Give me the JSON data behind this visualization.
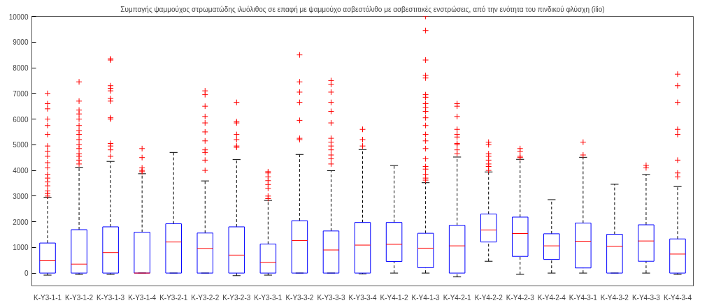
{
  "chart_data": {
    "type": "box",
    "title": "Συμπαγής ψαμμούχος στρωματώδης ιλυόλιθος σε επαφή με ψαμμούχο ασβεστόλιθο με ασβεστιτικές ενστρώσεις, από την ενότητα του πινδικού φλύσχη (ilio)",
    "categories": [
      "K-Y3-1-1",
      "K-Y3-1-2",
      "K-Y3-1-3",
      "K-Y3-1-4",
      "K-Y3-2-1",
      "K-Y3-2-2",
      "K-Y3-2-3",
      "K-Y3-3-1",
      "K-Y3-3-2",
      "K-Y3-3-3",
      "K-Y3-3-4",
      "K-Y4-1-2",
      "K-Y4-1-3",
      "K-Y4-2-1",
      "K-Y4-2-2",
      "K-Y4-2-3",
      "K-Y4-2-4",
      "K-Y4-3-1",
      "K-Y4-3-2",
      "K-Y4-3-3",
      "K-Y4-3-4"
    ],
    "boxes": [
      {
        "low": -80,
        "q1": 0,
        "median": 480,
        "q3": 1170,
        "high": 2950,
        "outliers": [
          7000,
          6600,
          6400,
          6000,
          5750,
          5400,
          4950,
          4750,
          4550,
          4300,
          4100,
          3850,
          3700,
          3550,
          3400,
          3200,
          3100,
          3000
        ]
      },
      {
        "low": -50,
        "q1": 0,
        "median": 350,
        "q3": 1690,
        "high": 4120,
        "outliers": [
          7450,
          6700,
          6350,
          6200,
          6000,
          5750,
          5550,
          5400,
          5200,
          5000,
          4850,
          4650,
          4550,
          4400,
          4250
        ]
      },
      {
        "low": -50,
        "q1": 0,
        "median": 800,
        "q3": 1800,
        "high": 4350,
        "outliers": [
          8350,
          8300,
          7300,
          7200,
          7100,
          6800,
          6700,
          6050,
          6000,
          5050,
          4950,
          4800,
          4550
        ]
      },
      {
        "low": 0,
        "q1": 0,
        "median": 0,
        "q3": 1590,
        "high": 3870,
        "outliers": [
          4850,
          4500,
          4100,
          4000,
          3950
        ]
      },
      {
        "low": 0,
        "q1": 0,
        "median": 1210,
        "q3": 1920,
        "high": 4700
      },
      {
        "low": 0,
        "q1": 0,
        "median": 960,
        "q3": 1560,
        "high": 3590,
        "outliers": [
          7100,
          6950,
          6500,
          6100,
          5850,
          5500,
          5150,
          4800,
          4700,
          4400,
          4000
        ]
      },
      {
        "low": -100,
        "q1": 0,
        "median": 700,
        "q3": 1800,
        "high": 4420,
        "outliers": [
          6650,
          5900,
          5850,
          5400,
          5200,
          4950,
          4900
        ]
      },
      {
        "low": -80,
        "q1": 0,
        "median": 420,
        "q3": 1130,
        "high": 2830,
        "outliers": [
          3950,
          3900,
          3750,
          3600,
          3450,
          3300,
          3000,
          2900
        ]
      },
      {
        "low": 0,
        "q1": 0,
        "median": 1270,
        "q3": 2040,
        "high": 4620,
        "outliers": [
          8500,
          7450,
          7050,
          6650,
          5950,
          5250,
          5200
        ]
      },
      {
        "low": 0,
        "q1": 0,
        "median": 900,
        "q3": 1640,
        "high": 3990,
        "outliers": [
          7500,
          7350,
          7050,
          6650,
          6300,
          5850,
          5250,
          5100,
          4950,
          4800,
          4600,
          4450,
          4250
        ]
      },
      {
        "low": -30,
        "q1": 0,
        "median": 1090,
        "q3": 1970,
        "high": 4810,
        "outliers": [
          5600,
          5200,
          4950
        ]
      },
      {
        "low": 0,
        "q1": 450,
        "median": 1120,
        "q3": 1970,
        "high": 4190
      },
      {
        "low": 0,
        "q1": 210,
        "median": 970,
        "q3": 1550,
        "high": 3520,
        "outliers": [
          10000,
          9450,
          8300,
          7700,
          7600,
          6950,
          6850,
          6600,
          6450,
          6300,
          6050,
          5750,
          5400,
          5150,
          4850,
          4450,
          4150,
          4050,
          3850,
          3700,
          3620
        ]
      },
      {
        "low": -150,
        "q1": 0,
        "median": 1060,
        "q3": 1860,
        "high": 4520,
        "outliers": [
          6600,
          6500,
          6100,
          5600,
          5400,
          5300,
          5050,
          5000,
          4800,
          4650
        ]
      },
      {
        "low": 460,
        "q1": 1210,
        "median": 1680,
        "q3": 2300,
        "high": 3940,
        "outliers": [
          5100,
          5000,
          4650,
          4550,
          4400,
          4250,
          4150,
          4000
        ]
      },
      {
        "low": -50,
        "q1": 650,
        "median": 1540,
        "q3": 2180,
        "high": 4430,
        "outliers": [
          4850,
          4750,
          4550,
          4500
        ]
      },
      {
        "low": 0,
        "q1": 530,
        "median": 1060,
        "q3": 1530,
        "high": 2860
      },
      {
        "low": 0,
        "q1": 200,
        "median": 1240,
        "q3": 1950,
        "high": 4510,
        "outliers": [
          5100,
          4600
        ]
      },
      {
        "low": 0,
        "q1": 0,
        "median": 1040,
        "q3": 1510,
        "high": 3460
      },
      {
        "low": 0,
        "q1": 460,
        "median": 1250,
        "q3": 1880,
        "high": 3840,
        "outliers": [
          4200,
          4100
        ]
      },
      {
        "low": -50,
        "q1": 0,
        "median": 740,
        "q3": 1330,
        "high": 3370,
        "outliers": [
          7750,
          7300,
          6650,
          5600,
          5400,
          4400,
          3900,
          3750
        ]
      }
    ],
    "color": "#0000ff",
    "ylim": [
      -500,
      10000
    ],
    "yticks": [
      0,
      1000,
      2000,
      3000,
      4000,
      5000,
      6000,
      7000,
      8000,
      9000,
      10000
    ],
    "grid": false,
    "marker": "cross"
  }
}
